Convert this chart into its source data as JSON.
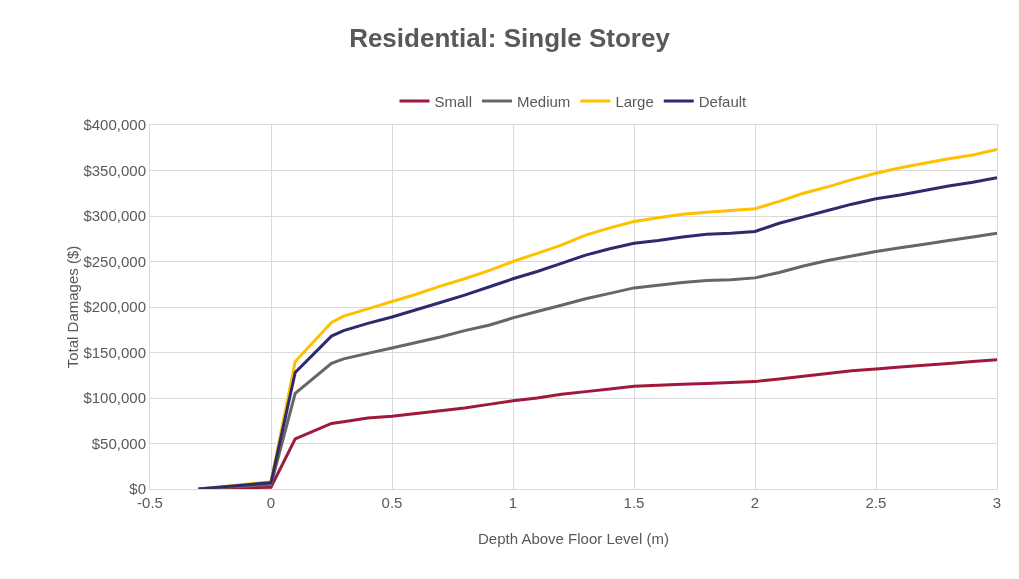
{
  "chart_data": {
    "type": "line",
    "title": "Residential: Single Storey",
    "xlabel": "Depth Above Floor Level (m)",
    "ylabel": "Total Damages ($)",
    "x": [
      -0.3,
      0,
      0.1,
      0.25,
      0.3,
      0.4,
      0.5,
      0.6,
      0.7,
      0.8,
      0.9,
      1.0,
      1.1,
      1.2,
      1.3,
      1.4,
      1.5,
      1.6,
      1.7,
      1.8,
      1.9,
      2.0,
      2.1,
      2.2,
      2.3,
      2.4,
      2.5,
      2.6,
      2.7,
      2.8,
      2.9,
      3.0
    ],
    "series": [
      {
        "name": "Small",
        "color": "#a0193a",
        "values": [
          0,
          2000,
          55000,
          72000,
          74000,
          78000,
          80000,
          83000,
          86000,
          89000,
          93000,
          97000,
          100000,
          104000,
          107000,
          110000,
          113000,
          114000,
          115000,
          116000,
          117000,
          118000,
          121000,
          124000,
          127000,
          130000,
          132000,
          134000,
          136000,
          138000,
          140000,
          142000
        ]
      },
      {
        "name": "Medium",
        "color": "#666666",
        "values": [
          0,
          5000,
          105000,
          138000,
          143000,
          149000,
          155000,
          161000,
          167000,
          174000,
          180000,
          188000,
          195000,
          202000,
          209000,
          215000,
          221000,
          224000,
          227000,
          229000,
          230000,
          232000,
          238000,
          245000,
          251000,
          256000,
          261000,
          265000,
          269000,
          273000,
          277000,
          281000
        ]
      },
      {
        "name": "Large",
        "color": "#ffc000",
        "values": [
          0,
          8000,
          140000,
          183000,
          190000,
          198000,
          206000,
          214000,
          223000,
          231000,
          240000,
          250000,
          259000,
          268000,
          279000,
          287000,
          294000,
          298000,
          302000,
          304000,
          306000,
          308000,
          316000,
          325000,
          332000,
          340000,
          347000,
          353000,
          358000,
          363000,
          367000,
          373000
        ]
      },
      {
        "name": "Default",
        "color": "#2e2a6e",
        "values": [
          0,
          7000,
          128000,
          168000,
          174000,
          182000,
          189000,
          197000,
          205000,
          213000,
          222000,
          231000,
          239000,
          248000,
          257000,
          264000,
          270000,
          273000,
          277000,
          280000,
          281000,
          283000,
          292000,
          299000,
          306000,
          313000,
          319000,
          323000,
          328000,
          333000,
          337000,
          342000
        ]
      }
    ],
    "xlim": [
      -0.5,
      3
    ],
    "xticks": [
      -0.5,
      0,
      0.5,
      1,
      1.5,
      2,
      2.5,
      3
    ],
    "ylim": [
      0,
      400000
    ],
    "yticks": [
      {
        "value": 0,
        "label": "$0"
      },
      {
        "value": 50000,
        "label": "$50,000"
      },
      {
        "value": 100000,
        "label": "$100,000"
      },
      {
        "value": 150000,
        "label": "$150,000"
      },
      {
        "value": 200000,
        "label": "$200,000"
      },
      {
        "value": 250000,
        "label": "$250,000"
      },
      {
        "value": 300000,
        "label": "$300,000"
      },
      {
        "value": 350000,
        "label": "$350,000"
      },
      {
        "value": 400000,
        "label": "$400,000"
      }
    ],
    "grid": true,
    "legend": "top",
    "marker": "none",
    "line_style": "solid"
  }
}
